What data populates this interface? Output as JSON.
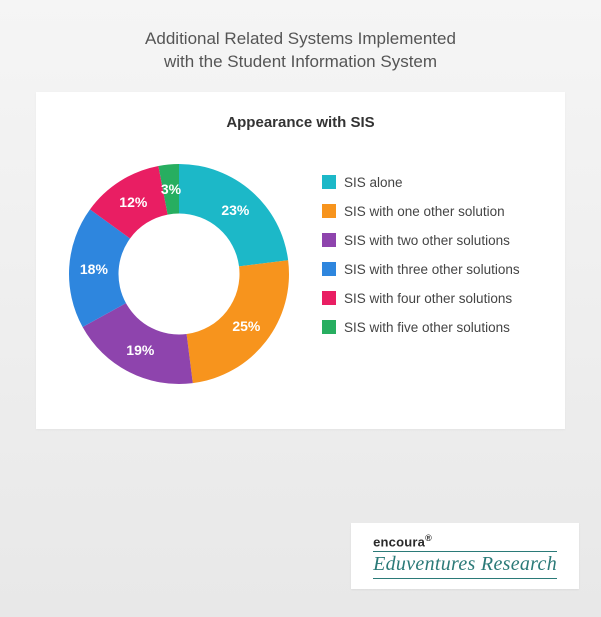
{
  "title_line1": "Additional Related Systems Implemented",
  "title_line2": "with the Student Information System",
  "chart": {
    "type": "donut",
    "title": "Appearance with SIS",
    "inner_radius_ratio": 0.55,
    "background_color": "#ffffff",
    "label_color": "#ffffff",
    "label_fontsize": 14,
    "start_angle_deg": 0,
    "slices": [
      {
        "label": "SIS alone",
        "value": 23,
        "display": "23%",
        "color": "#1cb8c8"
      },
      {
        "label": "SIS with one other solution",
        "value": 25,
        "display": "25%",
        "color": "#f7941d"
      },
      {
        "label": "SIS with two other solutions",
        "value": 19,
        "display": "19%",
        "color": "#8e44ad"
      },
      {
        "label": "SIS with three other solutions",
        "value": 18,
        "display": "18%",
        "color": "#2e86de"
      },
      {
        "label": "SIS with four other solutions",
        "value": 12,
        "display": "12%",
        "color": "#e91e63"
      },
      {
        "label": "SIS with five other solutions",
        "value": 3,
        "display": "3%",
        "color": "#27ae60"
      }
    ]
  },
  "brand": {
    "top": "encoura",
    "reg": "®",
    "bottom": "Eduventures Research"
  }
}
